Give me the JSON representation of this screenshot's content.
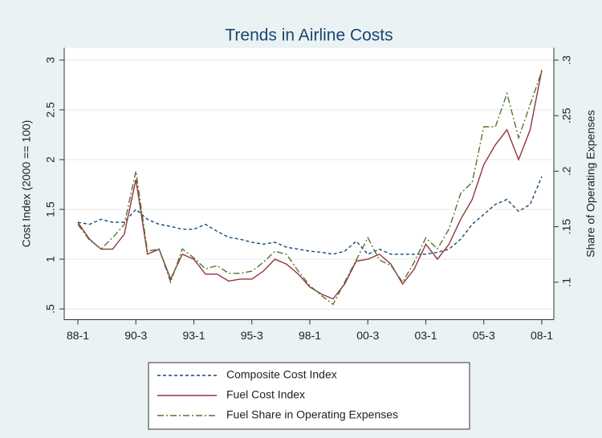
{
  "chart_data": {
    "type": "line",
    "title": "Trends in Airline Costs",
    "y_label": "Cost Index (2000 == 100)",
    "y2_label": "Share of Operating Expenses",
    "categories": [
      "88-1",
      null,
      null,
      null,
      null,
      "90-3",
      null,
      null,
      null,
      null,
      "93-1",
      null,
      null,
      null,
      null,
      "95-3",
      null,
      null,
      null,
      null,
      "98-1",
      null,
      null,
      null,
      null,
      "00-3",
      null,
      null,
      null,
      null,
      "03-1",
      null,
      null,
      null,
      null,
      "05-3",
      null,
      null,
      null,
      null,
      "08-1"
    ],
    "ylim": [
      0.4,
      3.1
    ],
    "yticks": [
      {
        "value": 0.5,
        "label": ".5"
      },
      1,
      1.5,
      2,
      2.5,
      3
    ],
    "y2lim": [
      0.067,
      0.309
    ],
    "y2ticks": [
      {
        "value": 0.1,
        "label": ".1"
      },
      {
        "value": 0.15,
        "label": ".15"
      },
      {
        "value": 0.2,
        "label": ".2"
      },
      {
        "value": 0.25,
        "label": ".25"
      },
      {
        "value": 0.3,
        "label": ".3"
      }
    ],
    "grid": true,
    "legend": "bottom",
    "series": [
      {
        "name": "Composite Cost Index",
        "color": "#1a476f",
        "dash": "dash",
        "values": [
          1.37,
          1.35,
          1.4,
          1.37,
          1.37,
          1.5,
          1.4,
          1.35,
          1.33,
          1.3,
          1.3,
          1.35,
          1.28,
          1.22,
          1.2,
          1.17,
          1.15,
          1.17,
          1.12,
          1.1,
          1.08,
          1.07,
          1.05,
          1.08,
          1.18,
          1.05,
          1.1,
          1.05,
          1.05,
          1.05,
          1.05,
          1.07,
          1.1,
          1.2,
          1.35,
          1.45,
          1.55,
          1.6,
          1.48,
          1.55,
          1.83
        ]
      },
      {
        "name": "Fuel Cost Index",
        "color": "#90353b",
        "dash": "solid",
        "values": [
          1.37,
          1.2,
          1.1,
          1.1,
          1.25,
          1.8,
          1.05,
          1.1,
          0.8,
          1.05,
          1.0,
          0.85,
          0.85,
          0.78,
          0.8,
          0.8,
          0.88,
          1.0,
          0.95,
          0.85,
          0.72,
          0.65,
          0.6,
          0.75,
          0.98,
          1.0,
          1.05,
          0.95,
          0.75,
          0.9,
          1.15,
          1.0,
          1.15,
          1.4,
          1.6,
          1.95,
          2.15,
          2.3,
          2.0,
          2.3,
          2.9
        ]
      },
      {
        "name": "Fuel Share in Operating Expenses",
        "color": "#55752f",
        "dash": "dashdot",
        "axis": "y2",
        "values": [
          0.152,
          0.138,
          0.13,
          0.14,
          0.152,
          0.2,
          0.128,
          0.13,
          0.1,
          0.13,
          0.122,
          0.112,
          0.115,
          0.108,
          0.108,
          0.11,
          0.118,
          0.128,
          0.125,
          0.11,
          0.097,
          0.088,
          0.08,
          0.1,
          0.12,
          0.14,
          0.12,
          0.115,
          0.1,
          0.118,
          0.14,
          0.13,
          0.148,
          0.18,
          0.19,
          0.24,
          0.24,
          0.27,
          0.23,
          0.26,
          0.29
        ]
      }
    ]
  }
}
